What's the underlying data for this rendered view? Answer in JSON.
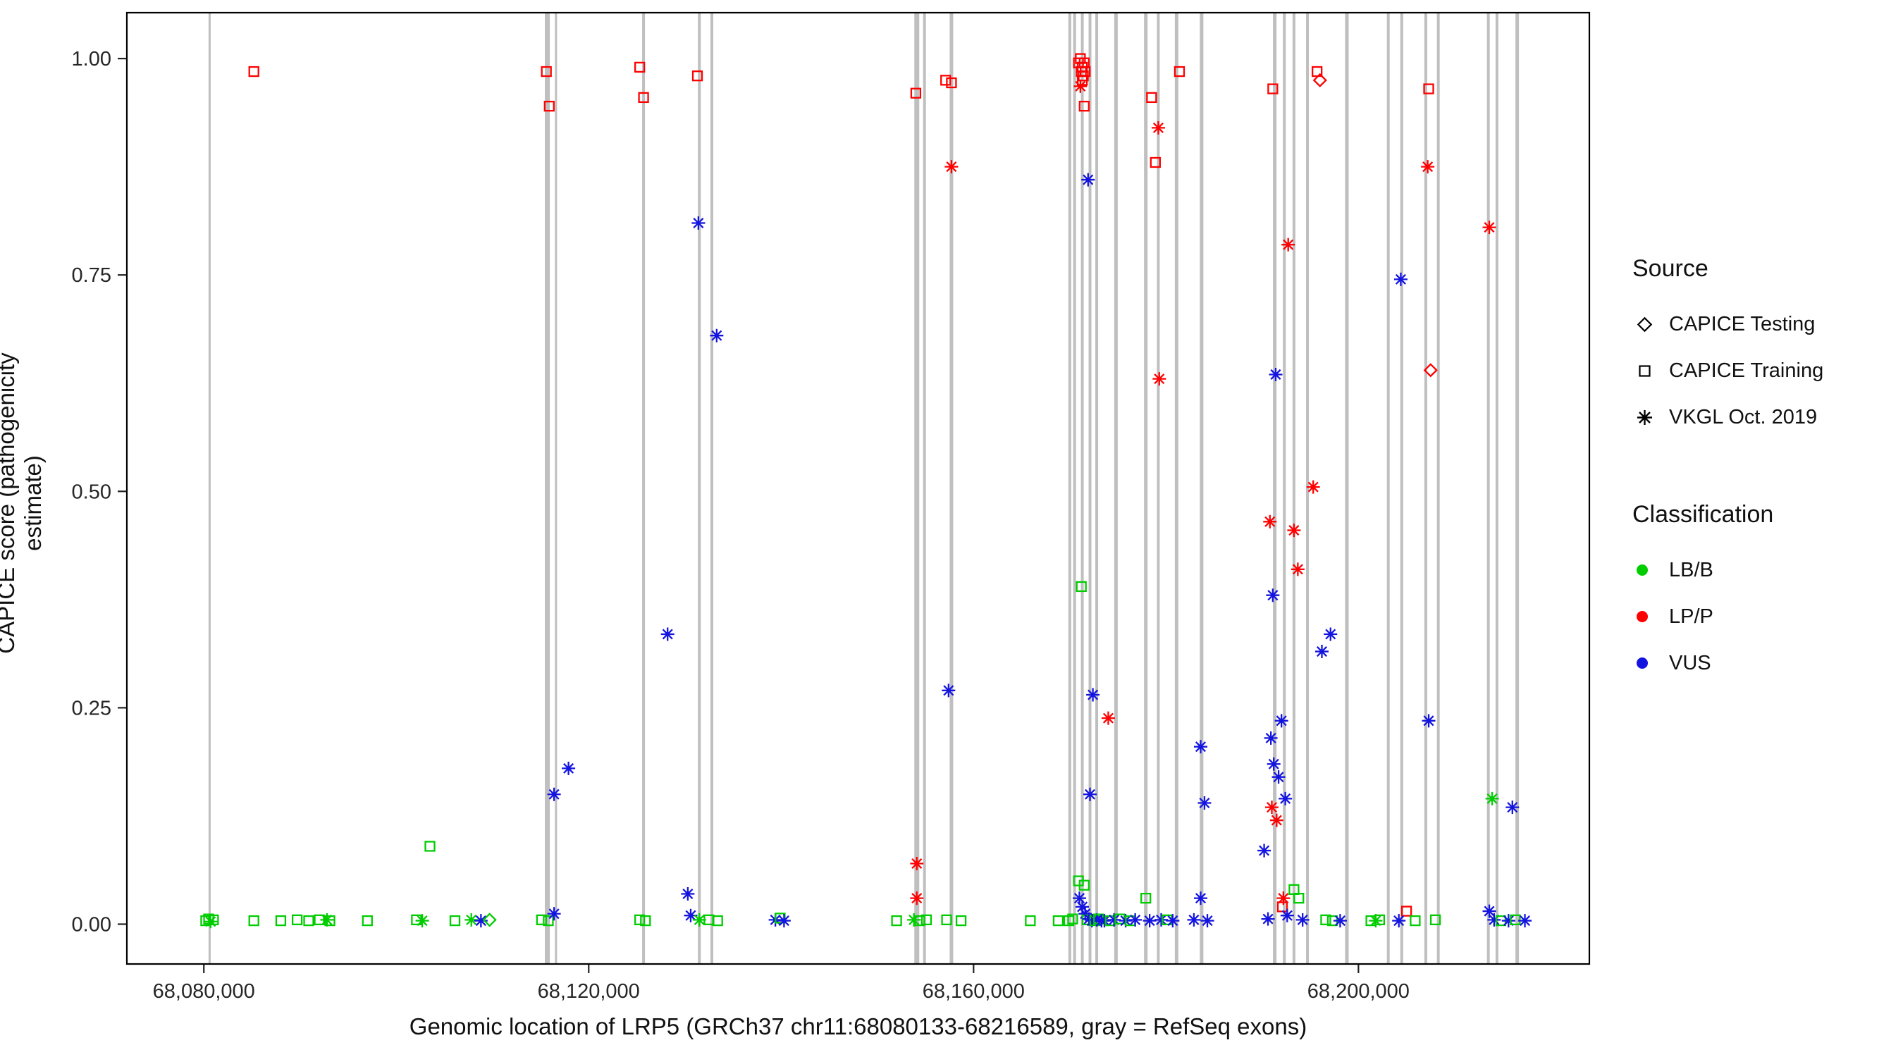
{
  "figure": {
    "background": "#ffffff",
    "panel_border_color": "#000000",
    "exon_line_color": "#bfbfbf"
  },
  "axes": {
    "x": {
      "title": "Genomic location of LRP5 (GRCh37 chr11:68080133-68216589, gray = RefSeq exons)",
      "ticks": [
        {
          "value": 68080000,
          "label": "68,080,000"
        },
        {
          "value": 68120000,
          "label": "68,120,000"
        },
        {
          "value": 68160000,
          "label": "68,160,000"
        },
        {
          "value": 68200000,
          "label": "68,200,000"
        }
      ]
    },
    "y": {
      "title": "CAPICE score (pathogenicity estimate)",
      "ticks": [
        {
          "value": 0.0,
          "label": "0.00"
        },
        {
          "value": 0.25,
          "label": "0.25"
        },
        {
          "value": 0.5,
          "label": "0.50"
        },
        {
          "value": 0.75,
          "label": "0.75"
        },
        {
          "value": 1.0,
          "label": "1.00"
        }
      ]
    }
  },
  "legend": {
    "source": {
      "title": "Source",
      "items": [
        {
          "label": "CAPICE Testing",
          "shape": "diamond"
        },
        {
          "label": "CAPICE Training",
          "shape": "square"
        },
        {
          "label": "VKGL Oct. 2019",
          "shape": "asterisk"
        }
      ]
    },
    "classification": {
      "title": "Classification",
      "items": [
        {
          "label": "LB/B",
          "color": "#00CD00"
        },
        {
          "label": "LP/P",
          "color": "#FF0000"
        },
        {
          "label": "VUS",
          "color": "#1414E0"
        }
      ]
    }
  },
  "colors": {
    "LB/B": "#00CD00",
    "LP/P": "#FF0000",
    "VUS": "#1414E0",
    "exon": "#bfbfbf"
  },
  "chart_data": {
    "type": "scatter",
    "title": "",
    "xlabel": "Genomic location of LRP5 (GRCh37 chr11:68080133-68216589, gray = RefSeq exons)",
    "ylabel": "CAPICE score (pathogenicity estimate)",
    "xlim": [
      68072000,
      68224000
    ],
    "ylim": [
      0,
      1
    ],
    "grid": false,
    "legend_position": "right",
    "shape_meaning": {
      "diamond": "CAPICE Testing",
      "square": "CAPICE Training",
      "asterisk": "VKGL Oct. 2019"
    },
    "color_meaning": {
      "LB/B": "green",
      "LP/P": "red",
      "VUS": "blue"
    },
    "exon_lines": [
      [
        68080600,
        3
      ],
      [
        68115700,
        7
      ],
      [
        68116600,
        3
      ],
      [
        68125700,
        4
      ],
      [
        68131500,
        4
      ],
      [
        68132800,
        4
      ],
      [
        68154100,
        7
      ],
      [
        68154900,
        4
      ],
      [
        68157700,
        5
      ],
      [
        68170000,
        4
      ],
      [
        68170500,
        4
      ],
      [
        68171300,
        4
      ],
      [
        68172100,
        4
      ],
      [
        68172800,
        4
      ],
      [
        68174800,
        5
      ],
      [
        68177900,
        5
      ],
      [
        68179200,
        4
      ],
      [
        68181100,
        5
      ],
      [
        68183700,
        5
      ],
      [
        68191300,
        5
      ],
      [
        68192300,
        4
      ],
      [
        68193300,
        4
      ],
      [
        68194700,
        4
      ],
      [
        68198800,
        5
      ],
      [
        68203100,
        4
      ],
      [
        68204500,
        4
      ],
      [
        68207000,
        4
      ],
      [
        68208300,
        4
      ],
      [
        68213500,
        4
      ],
      [
        68214400,
        4
      ],
      [
        68216500,
        5
      ]
    ],
    "points": [
      [
        68085200,
        0.985,
        "square",
        "LP/P"
      ],
      [
        68115600,
        0.985,
        "square",
        "LP/P"
      ],
      [
        68115900,
        0.945,
        "square",
        "LP/P"
      ],
      [
        68125300,
        0.99,
        "square",
        "LP/P"
      ],
      [
        68125700,
        0.955,
        "square",
        "LP/P"
      ],
      [
        68131300,
        0.98,
        "square",
        "LP/P"
      ],
      [
        68154000,
        0.96,
        "square",
        "LP/P"
      ],
      [
        68157100,
        0.975,
        "square",
        "LP/P"
      ],
      [
        68157700,
        0.972,
        "square",
        "LP/P"
      ],
      [
        68157700,
        0.875,
        "asterisk",
        "LP/P"
      ],
      [
        68170900,
        0.995,
        "square",
        "LP/P"
      ],
      [
        68171100,
        1.0,
        "square",
        "LP/P"
      ],
      [
        68171300,
        0.99,
        "square",
        "LP/P"
      ],
      [
        68171500,
        0.995,
        "square",
        "LP/P"
      ],
      [
        68171200,
        0.985,
        "square",
        "LP/P"
      ],
      [
        68171400,
        0.98,
        "square",
        "LP/P"
      ],
      [
        68171600,
        0.985,
        "square",
        "LP/P"
      ],
      [
        68171300,
        0.975,
        "square",
        "LP/P"
      ],
      [
        68171100,
        0.968,
        "asterisk",
        "LP/P"
      ],
      [
        68171500,
        0.945,
        "square",
        "LP/P"
      ],
      [
        68171900,
        0.86,
        "asterisk",
        "VUS"
      ],
      [
        68171200,
        0.39,
        "square",
        "LB/B"
      ],
      [
        68172400,
        0.265,
        "asterisk",
        "VUS"
      ],
      [
        68172100,
        0.15,
        "asterisk",
        "VUS"
      ],
      [
        68174000,
        0.238,
        "asterisk",
        "LP/P"
      ],
      [
        68178500,
        0.955,
        "square",
        "LP/P"
      ],
      [
        68179200,
        0.92,
        "asterisk",
        "LP/P"
      ],
      [
        68178900,
        0.88,
        "square",
        "LP/P"
      ],
      [
        68181400,
        0.985,
        "square",
        "LP/P"
      ],
      [
        68179300,
        0.63,
        "asterisk",
        "LP/P"
      ],
      [
        68183600,
        0.205,
        "asterisk",
        "VUS"
      ],
      [
        68184000,
        0.14,
        "asterisk",
        "VUS"
      ],
      [
        68183600,
        0.03,
        "asterisk",
        "VUS"
      ],
      [
        68191100,
        0.965,
        "square",
        "LP/P"
      ],
      [
        68195700,
        0.985,
        "square",
        "LP/P"
      ],
      [
        68196000,
        0.975,
        "diamond",
        "LP/P"
      ],
      [
        68192700,
        0.785,
        "asterisk",
        "LP/P"
      ],
      [
        68191400,
        0.635,
        "asterisk",
        "VUS"
      ],
      [
        68195300,
        0.505,
        "asterisk",
        "LP/P"
      ],
      [
        68190800,
        0.465,
        "asterisk",
        "LP/P"
      ],
      [
        68193300,
        0.455,
        "asterisk",
        "LP/P"
      ],
      [
        68193700,
        0.41,
        "asterisk",
        "LP/P"
      ],
      [
        68191100,
        0.38,
        "asterisk",
        "VUS"
      ],
      [
        68197100,
        0.335,
        "asterisk",
        "VUS"
      ],
      [
        68196200,
        0.315,
        "asterisk",
        "VUS"
      ],
      [
        68192000,
        0.235,
        "asterisk",
        "VUS"
      ],
      [
        68190900,
        0.215,
        "asterisk",
        "VUS"
      ],
      [
        68191200,
        0.185,
        "asterisk",
        "VUS"
      ],
      [
        68191700,
        0.17,
        "asterisk",
        "VUS"
      ],
      [
        68192400,
        0.145,
        "asterisk",
        "VUS"
      ],
      [
        68191000,
        0.135,
        "asterisk",
        "LP/P"
      ],
      [
        68191500,
        0.12,
        "asterisk",
        "LP/P"
      ],
      [
        68190200,
        0.085,
        "asterisk",
        "VUS"
      ],
      [
        68192200,
        0.03,
        "asterisk",
        "LP/P"
      ],
      [
        68192100,
        0.02,
        "square",
        "LP/P"
      ],
      [
        68193300,
        0.04,
        "square",
        "LB/B"
      ],
      [
        68193800,
        0.03,
        "square",
        "LB/B"
      ],
      [
        68204400,
        0.745,
        "asterisk",
        "VUS"
      ],
      [
        68207300,
        0.965,
        "square",
        "LP/P"
      ],
      [
        68207200,
        0.875,
        "asterisk",
        "LP/P"
      ],
      [
        68207500,
        0.64,
        "diamond",
        "LP/P"
      ],
      [
        68207300,
        0.235,
        "asterisk",
        "VUS"
      ],
      [
        68205000,
        0.015,
        "square",
        "LP/P"
      ],
      [
        68213600,
        0.805,
        "asterisk",
        "LP/P"
      ],
      [
        68213900,
        0.145,
        "asterisk",
        "LB/B"
      ],
      [
        68216000,
        0.135,
        "asterisk",
        "VUS"
      ],
      [
        68116400,
        0.15,
        "asterisk",
        "VUS"
      ],
      [
        68117900,
        0.18,
        "asterisk",
        "VUS"
      ],
      [
        68128200,
        0.335,
        "asterisk",
        "VUS"
      ],
      [
        68131400,
        0.81,
        "asterisk",
        "VUS"
      ],
      [
        68133300,
        0.68,
        "asterisk",
        "VUS"
      ],
      [
        68157400,
        0.27,
        "asterisk",
        "VUS"
      ],
      [
        68080200,
        0.004,
        "square",
        "LB/B"
      ],
      [
        68080500,
        0.006,
        "square",
        "LB/B"
      ],
      [
        68080700,
        0.003,
        "asterisk",
        "LB/B"
      ],
      [
        68081000,
        0.005,
        "square",
        "LB/B"
      ],
      [
        68085200,
        0.004,
        "square",
        "LB/B"
      ],
      [
        68088000,
        0.004,
        "square",
        "LB/B"
      ],
      [
        68089700,
        0.005,
        "square",
        "LB/B"
      ],
      [
        68090900,
        0.004,
        "square",
        "LB/B"
      ],
      [
        68092000,
        0.005,
        "square",
        "LB/B"
      ],
      [
        68092800,
        0.005,
        "asterisk",
        "LB/B"
      ],
      [
        68093100,
        0.004,
        "square",
        "LB/B"
      ],
      [
        68097000,
        0.004,
        "square",
        "LB/B"
      ],
      [
        68102100,
        0.005,
        "square",
        "LB/B"
      ],
      [
        68102700,
        0.004,
        "asterisk",
        "LB/B"
      ],
      [
        68103500,
        0.09,
        "square",
        "LB/B"
      ],
      [
        68106100,
        0.004,
        "square",
        "LB/B"
      ],
      [
        68107800,
        0.005,
        "asterisk",
        "LB/B"
      ],
      [
        68108800,
        0.004,
        "asterisk",
        "VUS"
      ],
      [
        68109700,
        0.005,
        "diamond",
        "LB/B"
      ],
      [
        68115100,
        0.005,
        "square",
        "LB/B"
      ],
      [
        68115800,
        0.004,
        "square",
        "LB/B"
      ],
      [
        68116400,
        0.012,
        "asterisk",
        "VUS"
      ],
      [
        68125300,
        0.005,
        "square",
        "LB/B"
      ],
      [
        68125900,
        0.004,
        "square",
        "LB/B"
      ],
      [
        68130300,
        0.035,
        "asterisk",
        "VUS"
      ],
      [
        68130600,
        0.01,
        "asterisk",
        "VUS"
      ],
      [
        68131500,
        0.005,
        "asterisk",
        "LB/B"
      ],
      [
        68132500,
        0.005,
        "square",
        "LB/B"
      ],
      [
        68133400,
        0.004,
        "square",
        "LB/B"
      ],
      [
        68139400,
        0.005,
        "asterisk",
        "VUS"
      ],
      [
        68139900,
        0.007,
        "square",
        "LB/B"
      ],
      [
        68140300,
        0.004,
        "asterisk",
        "VUS"
      ],
      [
        68152000,
        0.004,
        "square",
        "LB/B"
      ],
      [
        68153800,
        0.005,
        "asterisk",
        "LB/B"
      ],
      [
        68154100,
        0.07,
        "asterisk",
        "LP/P"
      ],
      [
        68154100,
        0.03,
        "asterisk",
        "LP/P"
      ],
      [
        68154400,
        0.004,
        "square",
        "LB/B"
      ],
      [
        68155100,
        0.005,
        "square",
        "LB/B"
      ],
      [
        68157200,
        0.005,
        "square",
        "LB/B"
      ],
      [
        68158700,
        0.004,
        "square",
        "LB/B"
      ],
      [
        68165900,
        0.004,
        "square",
        "LB/B"
      ],
      [
        68168800,
        0.004,
        "square",
        "LB/B"
      ],
      [
        68170900,
        0.05,
        "square",
        "LB/B"
      ],
      [
        68171500,
        0.045,
        "square",
        "LB/B"
      ],
      [
        68169900,
        0.004,
        "square",
        "LB/B"
      ],
      [
        68170300,
        0.006,
        "square",
        "LB/B"
      ],
      [
        68171000,
        0.03,
        "asterisk",
        "VUS"
      ],
      [
        68171300,
        0.02,
        "asterisk",
        "VUS"
      ],
      [
        68171600,
        0.012,
        "asterisk",
        "VUS"
      ],
      [
        68171800,
        0.005,
        "square",
        "LB/B"
      ],
      [
        68172000,
        0.006,
        "asterisk",
        "VUS"
      ],
      [
        68172300,
        0.004,
        "asterisk",
        "VUS"
      ],
      [
        68172600,
        0.004,
        "square",
        "LB/B"
      ],
      [
        68172800,
        0.005,
        "asterisk",
        "VUS"
      ],
      [
        68173000,
        0.006,
        "square",
        "LB/B"
      ],
      [
        68173300,
        0.004,
        "asterisk",
        "VUS"
      ],
      [
        68173600,
        0.004,
        "asterisk",
        "VUS"
      ],
      [
        68174200,
        0.004,
        "square",
        "LB/B"
      ],
      [
        68174600,
        0.005,
        "asterisk",
        "VUS"
      ],
      [
        68175200,
        0.006,
        "square",
        "LB/B"
      ],
      [
        68175800,
        0.004,
        "asterisk",
        "VUS"
      ],
      [
        68176300,
        0.004,
        "square",
        "LB/B"
      ],
      [
        68176800,
        0.005,
        "asterisk",
        "VUS"
      ],
      [
        68177900,
        0.03,
        "square",
        "LB/B"
      ],
      [
        68178300,
        0.004,
        "asterisk",
        "VUS"
      ],
      [
        68179500,
        0.005,
        "asterisk",
        "VUS"
      ],
      [
        68180100,
        0.005,
        "square",
        "LB/B"
      ],
      [
        68180700,
        0.004,
        "asterisk",
        "VUS"
      ],
      [
        68182900,
        0.005,
        "asterisk",
        "VUS"
      ],
      [
        68184300,
        0.004,
        "asterisk",
        "VUS"
      ],
      [
        68190600,
        0.006,
        "asterisk",
        "VUS"
      ],
      [
        68192600,
        0.01,
        "asterisk",
        "VUS"
      ],
      [
        68194200,
        0.005,
        "asterisk",
        "VUS"
      ],
      [
        68196600,
        0.005,
        "square",
        "LB/B"
      ],
      [
        68197300,
        0.004,
        "square",
        "LB/B"
      ],
      [
        68198100,
        0.004,
        "asterisk",
        "VUS"
      ],
      [
        68201300,
        0.004,
        "square",
        "LB/B"
      ],
      [
        68201800,
        0.004,
        "asterisk",
        "LB/B"
      ],
      [
        68202200,
        0.005,
        "square",
        "LB/B"
      ],
      [
        68204200,
        0.004,
        "asterisk",
        "VUS"
      ],
      [
        68205900,
        0.004,
        "square",
        "LB/B"
      ],
      [
        68208000,
        0.005,
        "square",
        "LB/B"
      ],
      [
        68213600,
        0.015,
        "asterisk",
        "VUS"
      ],
      [
        68214100,
        0.005,
        "asterisk",
        "VUS"
      ],
      [
        68214800,
        0.004,
        "square",
        "LB/B"
      ],
      [
        68215600,
        0.004,
        "asterisk",
        "VUS"
      ],
      [
        68216300,
        0.005,
        "square",
        "LB/B"
      ],
      [
        68217300,
        0.004,
        "asterisk",
        "VUS"
      ]
    ]
  }
}
